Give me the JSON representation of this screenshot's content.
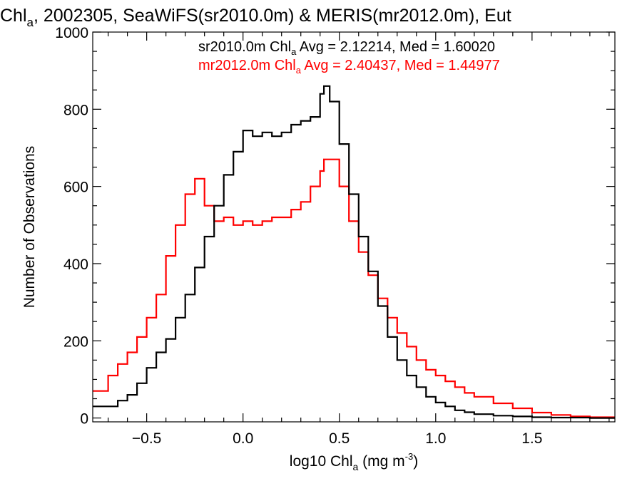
{
  "chart_data": {
    "type": "line",
    "step": true,
    "title": {
      "prefix": "Chl",
      "prefix_sub": "a",
      "rest": ", 2002305, SeaWiFS(sr2010.0m) & MERIS(mr2012.0m), Eut"
    },
    "xlabel": {
      "main": "log10 Chl",
      "sub": "a",
      "units_open": " (mg m",
      "sup": "-3",
      "units_close": ")"
    },
    "ylabel": "Number of Observations",
    "xlim": [
      -0.78,
      1.93
    ],
    "ylim": [
      -10,
      1000
    ],
    "x_ticks": [
      -0.5,
      0.0,
      0.5,
      1.0,
      1.5
    ],
    "x_tick_labels": [
      "−0.5",
      "0.0",
      "0.5",
      "1.0",
      "1.5"
    ],
    "y_ticks": [
      0,
      200,
      400,
      600,
      800,
      1000
    ],
    "y_tick_labels": [
      "0",
      "200",
      "400",
      "600",
      "800",
      "1000"
    ],
    "legend_placement": "top-center",
    "series": [
      {
        "color": "#000000",
        "legend": {
          "before": "sr2010.0m Chl",
          "sub": "a",
          "after": " Avg = 2.12214, Med = 1.60020"
        },
        "x": [
          -0.78,
          -0.7,
          -0.65,
          -0.6,
          -0.55,
          -0.5,
          -0.45,
          -0.4,
          -0.35,
          -0.3,
          -0.25,
          -0.2,
          -0.15,
          -0.1,
          -0.05,
          0.0,
          0.05,
          0.1,
          0.15,
          0.2,
          0.25,
          0.3,
          0.35,
          0.4,
          0.42,
          0.45,
          0.5,
          0.55,
          0.6,
          0.65,
          0.7,
          0.75,
          0.8,
          0.85,
          0.9,
          0.95,
          1.0,
          1.05,
          1.1,
          1.15,
          1.2,
          1.3,
          1.4,
          1.5,
          1.6,
          1.7,
          1.8,
          1.93
        ],
        "values": [
          30,
          30,
          45,
          60,
          90,
          130,
          170,
          205,
          260,
          320,
          390,
          470,
          550,
          630,
          690,
          745,
          730,
          740,
          730,
          740,
          760,
          770,
          780,
          840,
          860,
          820,
          710,
          580,
          470,
          380,
          290,
          210,
          150,
          110,
          80,
          55,
          40,
          30,
          20,
          15,
          10,
          6,
          4,
          2,
          1,
          1,
          0,
          0
        ]
      },
      {
        "color": "#ff0000",
        "legend": {
          "before": "mr2012.0m Chl",
          "sub": "a",
          "after": " Avg = 2.40437, Med = 1.44977"
        },
        "x": [
          -0.78,
          -0.7,
          -0.65,
          -0.6,
          -0.55,
          -0.5,
          -0.45,
          -0.4,
          -0.35,
          -0.3,
          -0.25,
          -0.2,
          -0.15,
          -0.1,
          -0.05,
          0.0,
          0.05,
          0.1,
          0.15,
          0.2,
          0.25,
          0.3,
          0.35,
          0.4,
          0.42,
          0.45,
          0.5,
          0.55,
          0.6,
          0.65,
          0.7,
          0.75,
          0.8,
          0.85,
          0.9,
          0.95,
          1.0,
          1.05,
          1.1,
          1.15,
          1.2,
          1.3,
          1.4,
          1.5,
          1.6,
          1.7,
          1.8,
          1.93
        ],
        "values": [
          70,
          110,
          140,
          170,
          210,
          260,
          320,
          420,
          500,
          580,
          620,
          550,
          510,
          520,
          500,
          510,
          500,
          510,
          520,
          520,
          540,
          560,
          600,
          640,
          670,
          670,
          600,
          510,
          430,
          370,
          310,
          260,
          220,
          185,
          150,
          125,
          110,
          95,
          80,
          65,
          55,
          38,
          25,
          14,
          8,
          4,
          2,
          0
        ]
      }
    ]
  }
}
